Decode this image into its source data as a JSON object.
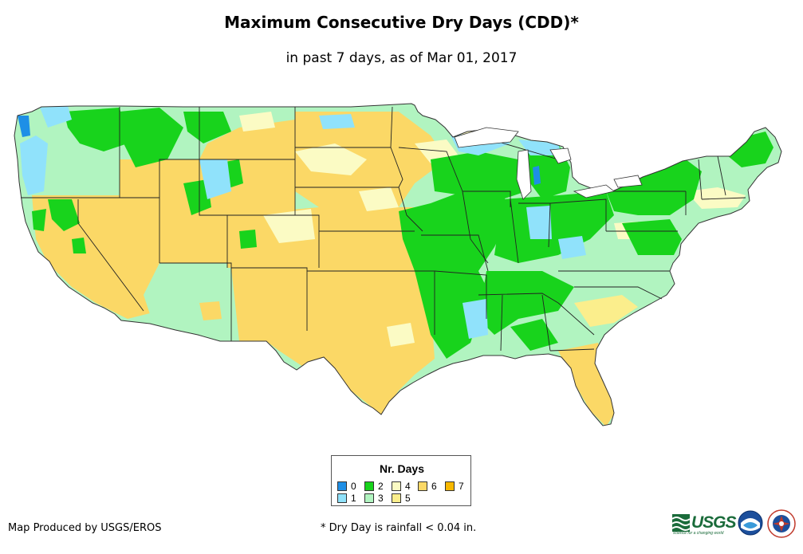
{
  "title": "Maximum Consecutive Dry Days (CDD)*",
  "subtitle": "in past 7 days, as of Mar 01, 2017",
  "map": {
    "region": "Contiguous United States",
    "colors": {
      "0": "#1e8fe6",
      "1": "#90e2fb",
      "2": "#18d31c",
      "3": "#b1f4c0",
      "4": "#fbfbc4",
      "5": "#fbee8c",
      "6": "#fbd866",
      "7": "#f7b800"
    },
    "state_border_color": "#222222",
    "coast_color": "#333333"
  },
  "legend": {
    "title": "Nr. Days",
    "items": [
      {
        "label": "0",
        "color": "#1e8fe6"
      },
      {
        "label": "1",
        "color": "#90e2fb"
      },
      {
        "label": "2",
        "color": "#18d31c"
      },
      {
        "label": "3",
        "color": "#b1f4c0"
      },
      {
        "label": "4",
        "color": "#fbfbc4"
      },
      {
        "label": "5",
        "color": "#fbee8c"
      },
      {
        "label": "6",
        "color": "#fbd866"
      },
      {
        "label": "7",
        "color": "#f7b800"
      }
    ]
  },
  "footer": {
    "credit": "Map Produced by USGS/EROS",
    "footnote": "* Dry Day is rainfall < 0.04 in."
  },
  "logos": {
    "usgs_text": "USGS",
    "usgs_tagline": "science for a changing world",
    "usgs_icon": "usgs-wave-icon",
    "noaa_icon": "noaa-logo-icon",
    "nws_icon": "nws-logo-icon"
  }
}
